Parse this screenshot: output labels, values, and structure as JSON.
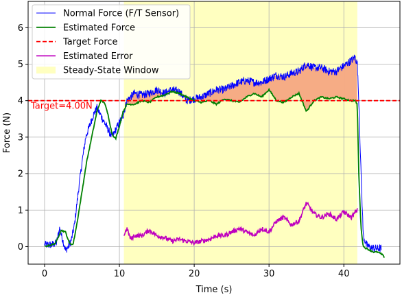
{
  "chart_data": {
    "type": "line",
    "xlabel": "Time (s)",
    "ylabel": "Force (N)",
    "xlim": [
      -2.2,
      47.5
    ],
    "ylim": [
      -0.48,
      6.72
    ],
    "xticks": [
      0,
      10,
      20,
      30,
      40
    ],
    "yticks": [
      0,
      1,
      2,
      3,
      4,
      5,
      6
    ],
    "grid": true,
    "legend_position": "top-left",
    "colors": {
      "normal": "#0000ff",
      "estimated": "#008000",
      "target": "#ff0000",
      "error": "#bf00bf",
      "window": "#ffffc0",
      "fill": "#f5a882"
    },
    "target_value": 4.0,
    "target_annotation": "Target=4.00N",
    "steady_state_window": [
      10.6,
      41.8
    ],
    "series": [
      {
        "name": "Normal Force (F/T Sensor)",
        "x": [
          0,
          1,
          1.6,
          2,
          2.4,
          2.8,
          3.2,
          3.6,
          4.0,
          4.5,
          5.0,
          5.5,
          6.0,
          6.5,
          7.0,
          7.5,
          8.0,
          8.5,
          9.0,
          9.5,
          10.0,
          10.5,
          11.0,
          12,
          13,
          14,
          15,
          16,
          17,
          18,
          19,
          20,
          21,
          22,
          23,
          24,
          25,
          26,
          27,
          28,
          29,
          30,
          31,
          32,
          33,
          34,
          35,
          36,
          37,
          38,
          39,
          40,
          41,
          41.5,
          41.8,
          42.0,
          42.3,
          42.6,
          43.0,
          43.5,
          44,
          45
        ],
        "y": [
          0.05,
          0.05,
          0.1,
          0.5,
          0.2,
          -0.1,
          0.0,
          0.2,
          0.6,
          1.5,
          2.3,
          3.0,
          3.3,
          3.6,
          3.8,
          3.6,
          3.4,
          3.2,
          3.0,
          3.2,
          3.4,
          3.6,
          4.0,
          4.2,
          4.15,
          4.2,
          4.3,
          4.2,
          4.3,
          4.25,
          4.0,
          4.05,
          4.1,
          4.2,
          4.3,
          4.3,
          4.4,
          4.5,
          4.55,
          4.5,
          4.5,
          4.6,
          4.7,
          4.65,
          4.75,
          4.8,
          5.0,
          4.9,
          4.9,
          4.8,
          4.8,
          4.95,
          5.1,
          5.2,
          5.0,
          4.0,
          2.0,
          0.3,
          0.05,
          -0.02,
          -0.05,
          -0.05
        ],
        "color": "#0000ff"
      },
      {
        "name": "Estimated Force",
        "x": [
          0,
          1,
          1.5,
          2.2,
          2.8,
          3.3,
          3.8,
          4.3,
          5.0,
          5.6,
          6.3,
          7.0,
          7.5,
          8.0,
          8.5,
          9.0,
          9.5,
          10.0,
          10.5,
          11,
          12,
          13,
          14,
          15,
          16,
          17,
          18,
          19,
          20,
          21,
          22,
          23,
          24,
          25,
          26,
          27,
          28,
          29,
          30,
          31,
          32,
          33,
          34,
          35,
          36,
          37,
          38,
          39,
          40,
          41,
          41.5,
          41.8,
          42.0,
          42.3,
          42.6,
          43.0,
          43.5,
          44,
          44.5,
          45,
          45.5
        ],
        "y": [
          0.0,
          0.05,
          0.1,
          0.45,
          0.4,
          0.1,
          0.05,
          0.6,
          1.5,
          2.3,
          3.0,
          3.7,
          4.0,
          3.95,
          3.6,
          3.1,
          2.95,
          3.3,
          3.7,
          3.9,
          3.9,
          4.0,
          3.95,
          4.1,
          4.15,
          4.25,
          4.2,
          4.1,
          4.0,
          3.95,
          4.0,
          3.9,
          4.05,
          4.0,
          3.95,
          4.1,
          4.2,
          4.1,
          4.3,
          4.0,
          3.95,
          4.1,
          4.2,
          3.7,
          4.0,
          4.1,
          4.05,
          4.1,
          4.05,
          4.0,
          4.0,
          3.9,
          2.0,
          0.5,
          0.0,
          -0.05,
          -0.1,
          -0.15,
          -0.15,
          -0.2,
          -0.3
        ],
        "color": "#008000"
      },
      {
        "name": "Target Force",
        "x": [
          -2.2,
          47.5
        ],
        "y": [
          4.0,
          4.0
        ],
        "color": "#ff0000"
      },
      {
        "name": "Estimated Error",
        "x": [
          10.6,
          11,
          11.5,
          12,
          13,
          14,
          15,
          16,
          17,
          18,
          19,
          20,
          21,
          22,
          23,
          24,
          25,
          26,
          27,
          28,
          29,
          30,
          31,
          32,
          33,
          34,
          35,
          36,
          37,
          38,
          39,
          40,
          41,
          41.8
        ],
        "y": [
          0.3,
          0.5,
          0.2,
          0.3,
          0.3,
          0.45,
          0.3,
          0.25,
          0.15,
          0.2,
          0.15,
          0.1,
          0.15,
          0.2,
          0.3,
          0.3,
          0.4,
          0.5,
          0.4,
          0.3,
          0.5,
          0.4,
          0.7,
          0.8,
          0.6,
          0.7,
          1.2,
          0.9,
          0.8,
          0.9,
          0.75,
          0.95,
          0.8,
          1.0
        ],
        "color": "#bf00bf"
      }
    ],
    "legend": [
      {
        "label": "Normal Force (F/T Sensor)",
        "kind": "line",
        "color": "#0000ff"
      },
      {
        "label": "Estimated Force",
        "kind": "line",
        "color": "#008000"
      },
      {
        "label": "Target Force",
        "kind": "dashed",
        "color": "#ff0000"
      },
      {
        "label": "Estimated Error",
        "kind": "line",
        "color": "#bf00bf"
      },
      {
        "label": "Steady-State Window",
        "kind": "patch",
        "color": "#ffffc0"
      }
    ]
  }
}
